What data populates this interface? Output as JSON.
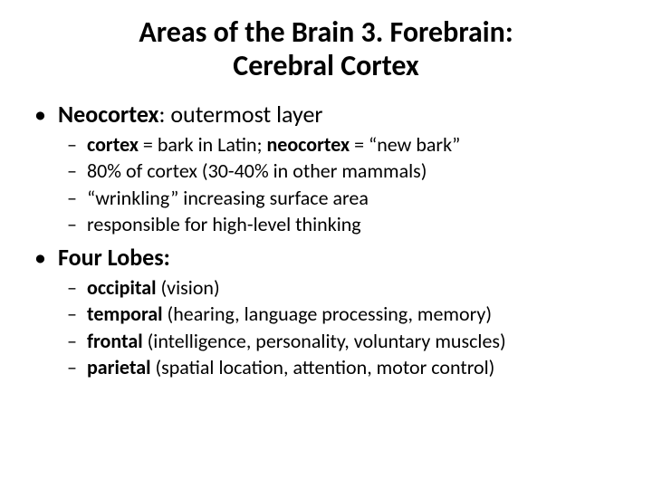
{
  "title_line1": "Areas of the Brain 3. Forebrain:",
  "title_line2": "Cerebral Cortex",
  "title_fontsize": 32,
  "body_l1_fontsize": 26,
  "body_l2_fontsize": 22,
  "bullet_char": "•",
  "dash_char": "–",
  "text_color": "#000000",
  "background_color": "#ffffff",
  "sections": [
    {
      "label_bold": "Neocortex",
      "label_rest": ": outermost layer",
      "items": [
        {
          "pre": "",
          "b1": "cortex",
          "mid": " = bark in Latin; ",
          "b2": "neocortex",
          "post": " = “new bark”"
        },
        {
          "plain": "80% of cortex (30-40% in other mammals)"
        },
        {
          "plain": "“wrinkling” increasing surface area"
        },
        {
          "plain": "responsible for high-level thinking"
        }
      ]
    },
    {
      "label_bold": "Four Lobes",
      "label_rest": ":",
      "label_all_bold": true,
      "items": [
        {
          "b1": "occipital",
          "post": " (vision)"
        },
        {
          "b1": "temporal",
          "post": " (hearing, language processing, memory)"
        },
        {
          "b1": "frontal",
          "post": " (intelligence, personality, voluntary muscles)"
        },
        {
          "b1": "parietal",
          "post": " (spatial location, attention, motor control)"
        }
      ]
    }
  ]
}
